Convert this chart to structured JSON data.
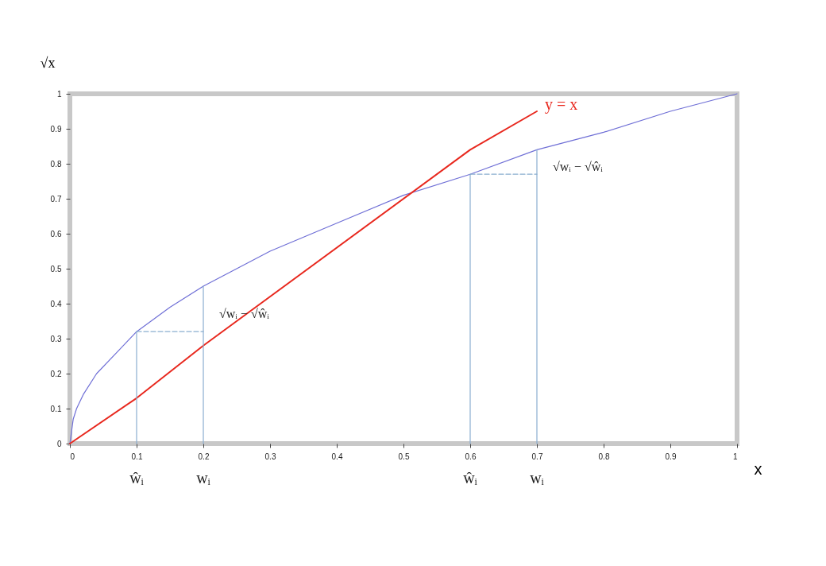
{
  "chart_data": {
    "type": "line",
    "xlabel": "x",
    "ylabel": "√x",
    "xlim": [
      0,
      1
    ],
    "ylim": [
      0,
      1
    ],
    "xticks": [
      0,
      0.1,
      0.2,
      0.3,
      0.4,
      0.5,
      0.6,
      0.7,
      0.8,
      0.9,
      1
    ],
    "yticks": [
      0,
      0.1,
      0.2,
      0.3,
      0.4,
      0.5,
      0.6,
      0.7,
      0.8,
      0.9,
      1
    ],
    "grid": false,
    "marker": "none",
    "series": [
      {
        "color": "#6f6fd6",
        "x": [
          0,
          0.005,
          0.01,
          0.02,
          0.04,
          0.07,
          0.1,
          0.15,
          0.2,
          0.3,
          0.4,
          0.5,
          0.6,
          0.7,
          0.8,
          0.9,
          1
        ],
        "values": [
          0,
          0.07,
          0.1,
          0.14,
          0.2,
          0.26,
          0.32,
          0.39,
          0.45,
          0.55,
          0.63,
          0.71,
          0.77,
          0.84,
          0.89,
          0.95,
          1
        ]
      },
      {
        "name": "y = x",
        "color": "#e8281e",
        "x": [
          0,
          0.1,
          0.2,
          0.6,
          0.7
        ],
        "values": [
          0,
          0.13,
          0.28,
          0.84,
          0.95
        ]
      },
      {
        "color": "#8aaed0",
        "x": [
          0.1,
          0.1
        ],
        "values": [
          0,
          0.32
        ]
      },
      {
        "color": "#8aaed0",
        "x": [
          0.2,
          0.2
        ],
        "values": [
          0,
          0.45
        ]
      },
      {
        "color": "#8aaed0",
        "x": [
          0.6,
          0.6
        ],
        "values": [
          0,
          0.77
        ]
      },
      {
        "color": "#8aaed0",
        "x": [
          0.7,
          0.7
        ],
        "values": [
          0,
          0.84
        ]
      },
      {
        "color": "#8aaed0",
        "line_style": "dashed",
        "x": [
          0.1,
          0.2
        ],
        "values": [
          0.32,
          0.32
        ]
      },
      {
        "color": "#8aaed0",
        "line_style": "dashed",
        "x": [
          0.6,
          0.7
        ],
        "values": [
          0.77,
          0.77
        ]
      }
    ],
    "annotations": [
      {
        "text": "√wᵢ − √ŵᵢ",
        "x": 0.2,
        "y": 0.38
      },
      {
        "text": "√wᵢ − √ŵᵢ",
        "x": 0.7,
        "y": 0.8
      },
      {
        "text": "ŵᵢ",
        "x": 0.1,
        "y": 0
      },
      {
        "text": "wᵢ",
        "x": 0.2,
        "y": 0
      },
      {
        "text": "ŵᵢ",
        "x": 0.6,
        "y": 0
      },
      {
        "text": "wᵢ",
        "x": 0.7,
        "y": 0
      }
    ]
  }
}
